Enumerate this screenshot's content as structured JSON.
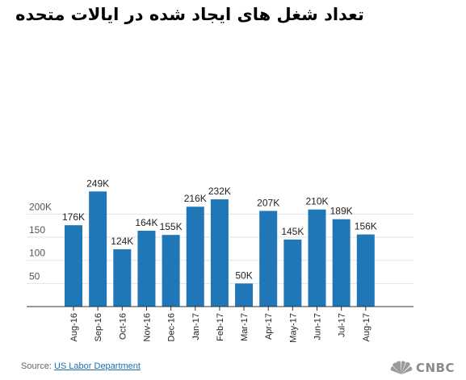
{
  "chart_data": {
    "type": "bar",
    "title": "تعداد شغل های ایجاد شده در ایالات متحده",
    "categories": [
      "Aug-16",
      "Sep-16",
      "Oct-16",
      "Nov-16",
      "Dec-16",
      "Jan-17",
      "Feb-17",
      "Mar-17",
      "Apr-17",
      "May-17",
      "Jun-17",
      "Jul-17",
      "Aug-17"
    ],
    "values": [
      176,
      249,
      124,
      164,
      155,
      216,
      232,
      50,
      207,
      145,
      210,
      189,
      156
    ],
    "data_labels": [
      "176K",
      "249K",
      "124K",
      "164K",
      "155K",
      "216K",
      "232K",
      "50K",
      "207K",
      "145K",
      "210K",
      "189K",
      "156K"
    ],
    "y_ticks": [
      50,
      100,
      150,
      200
    ],
    "y_tick_labels": [
      "50",
      "100",
      "150",
      "200K"
    ],
    "ylim": [
      0,
      260
    ],
    "grid": true,
    "bar_color": "#1f77b8",
    "xlabel": "",
    "ylabel": ""
  },
  "source": {
    "prefix": "Source: ",
    "link": "US Labor Department"
  },
  "logo": {
    "text": "CNBC",
    "icon": "peacock-icon"
  }
}
